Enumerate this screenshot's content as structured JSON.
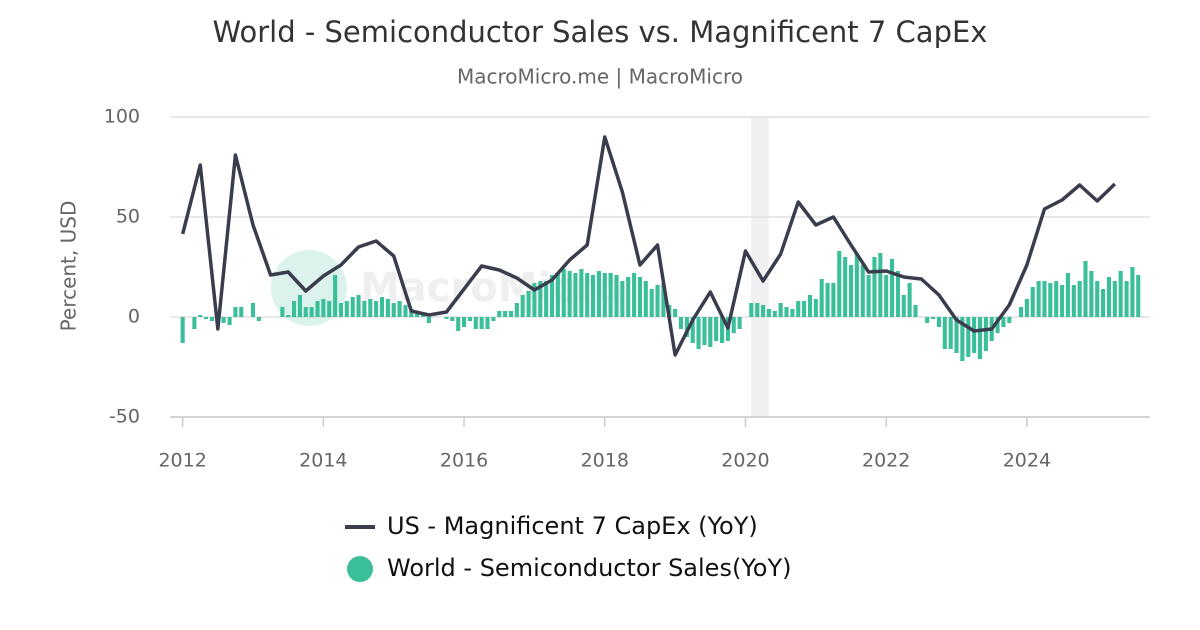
{
  "chart_data": {
    "type": "combo",
    "title": "World - Semiconductor Sales vs. Magnificent 7 CapEx",
    "subtitle": "MacroMicro.me | MacroMicro",
    "watermark": "MacroMicro",
    "y_label": "Percent, USD",
    "xlim": [
      2011.82,
      2025.75
    ],
    "xticks": [
      2012,
      2014,
      2016,
      2018,
      2020,
      2022,
      2024
    ],
    "ylim": [
      -50,
      100
    ],
    "yticks": [
      -50,
      0,
      50,
      100
    ],
    "grid": true,
    "shaded_band": [
      2020.08,
      2020.33
    ],
    "legend": "bottom",
    "series": [
      {
        "name": "US - Magnificent 7 CapEx (YoY)",
        "type": "line",
        "color": "#3a3d4d",
        "x": [
          2012,
          2012.25,
          2012.5,
          2012.75,
          2013,
          2013.25,
          2013.5,
          2013.75,
          2014,
          2014.25,
          2014.5,
          2014.75,
          2015,
          2015.25,
          2015.5,
          2015.75,
          2016,
          2016.25,
          2016.5,
          2016.75,
          2017,
          2017.25,
          2017.5,
          2017.75,
          2018,
          2018.25,
          2018.5,
          2018.75,
          2019,
          2019.25,
          2019.5,
          2019.75,
          2020,
          2020.25,
          2020.5,
          2020.75,
          2021,
          2021.25,
          2021.5,
          2021.75,
          2022,
          2022.25,
          2022.5,
          2022.75,
          2023,
          2023.25,
          2023.5,
          2023.75,
          2024,
          2024.25,
          2024.5,
          2024.75,
          2025,
          2025.25
        ],
        "values": [
          41.5,
          76,
          -6,
          81,
          46,
          21,
          22.5,
          13,
          20.5,
          26,
          35,
          38,
          30.5,
          3,
          1,
          2.5,
          14,
          25.5,
          23.5,
          19.5,
          13.5,
          18.5,
          28.5,
          36,
          90,
          62.5,
          26,
          36,
          -19,
          -1.5,
          12.5,
          -5.5,
          33,
          18,
          31.5,
          57.5,
          46,
          50,
          36,
          22.5,
          23,
          20,
          19,
          11,
          -1.5,
          -7,
          -6,
          6,
          26,
          54,
          58.5,
          66,
          58,
          66.5
        ]
      },
      {
        "name": "World - Semiconductor Sales(YoY)",
        "type": "bar",
        "color": "#3bbf9a",
        "x": [
          2012,
          2012.083,
          2012.167,
          2012.25,
          2012.333,
          2012.417,
          2012.5,
          2012.583,
          2012.667,
          2012.75,
          2012.833,
          2012.917,
          2013,
          2013.083,
          2013.167,
          2013.25,
          2013.333,
          2013.417,
          2013.5,
          2013.583,
          2013.667,
          2013.75,
          2013.833,
          2013.917,
          2014,
          2014.083,
          2014.167,
          2014.25,
          2014.333,
          2014.417,
          2014.5,
          2014.583,
          2014.667,
          2014.75,
          2014.833,
          2014.917,
          2015,
          2015.083,
          2015.167,
          2015.25,
          2015.333,
          2015.417,
          2015.5,
          2015.583,
          2015.667,
          2015.75,
          2015.833,
          2015.917,
          2016,
          2016.083,
          2016.167,
          2016.25,
          2016.333,
          2016.417,
          2016.5,
          2016.583,
          2016.667,
          2016.75,
          2016.833,
          2016.917,
          2017,
          2017.083,
          2017.167,
          2017.25,
          2017.333,
          2017.417,
          2017.5,
          2017.583,
          2017.667,
          2017.75,
          2017.833,
          2017.917,
          2018,
          2018.083,
          2018.167,
          2018.25,
          2018.333,
          2018.417,
          2018.5,
          2018.583,
          2018.667,
          2018.75,
          2018.833,
          2018.917,
          2019,
          2019.083,
          2019.167,
          2019.25,
          2019.333,
          2019.417,
          2019.5,
          2019.583,
          2019.667,
          2019.75,
          2019.833,
          2019.917,
          2020,
          2020.083,
          2020.167,
          2020.25,
          2020.333,
          2020.417,
          2020.5,
          2020.583,
          2020.667,
          2020.75,
          2020.833,
          2020.917,
          2021,
          2021.083,
          2021.167,
          2021.25,
          2021.333,
          2021.417,
          2021.5,
          2021.583,
          2021.667,
          2021.75,
          2021.833,
          2021.917,
          2022,
          2022.083,
          2022.167,
          2022.25,
          2022.333,
          2022.417,
          2022.5,
          2022.583,
          2022.667,
          2022.75,
          2022.833,
          2022.917,
          2023,
          2023.083,
          2023.167,
          2023.25,
          2023.333,
          2023.417,
          2023.5,
          2023.583,
          2023.667,
          2023.75,
          2023.833,
          2023.917,
          2024,
          2024.083,
          2024.167,
          2024.25,
          2024.333,
          2024.417,
          2024.5,
          2024.583,
          2024.667,
          2024.75,
          2024.833,
          2024.917,
          2025,
          2025.083,
          2025.167,
          2025.25,
          2025.333,
          2025.417,
          2025.5,
          2025.583
        ],
        "values": [
          -13,
          0,
          -6,
          1,
          -1,
          -2,
          -4,
          -3,
          -4,
          5,
          5,
          0,
          7,
          -2,
          0,
          0,
          0,
          5,
          1,
          8,
          11,
          5,
          5,
          8,
          9,
          8,
          21,
          7,
          8,
          10,
          11,
          8,
          9,
          8,
          10,
          9,
          7,
          8,
          6,
          4,
          2,
          1,
          -3,
          0,
          0,
          -1,
          -2,
          -7,
          -5,
          -2,
          -6,
          -6,
          -6,
          -2,
          3,
          3,
          3,
          7,
          11,
          13,
          17,
          18,
          18,
          21,
          22,
          24,
          23,
          22,
          24,
          22,
          21,
          23,
          22,
          22,
          21,
          18,
          20,
          22,
          20,
          18,
          14,
          16,
          17,
          6,
          4,
          -6,
          -10,
          -13,
          -16,
          -14,
          -15,
          -12,
          -13,
          -12,
          -8,
          -6,
          0,
          7,
          7,
          6,
          4,
          3,
          7,
          5,
          4,
          8,
          8,
          11,
          9,
          19,
          17,
          17,
          33,
          30,
          26,
          32,
          26,
          21,
          30,
          32,
          21,
          29,
          23,
          11,
          17,
          6,
          0,
          -3,
          -1,
          -5,
          -16,
          -16,
          -18,
          -22,
          -20,
          -18,
          -21,
          -17,
          -12,
          -8,
          -5,
          -3,
          0,
          5,
          9,
          15,
          18,
          18,
          17,
          18,
          16,
          22,
          16,
          18,
          28,
          23,
          18,
          14,
          20,
          18,
          23,
          18,
          25,
          21
        ]
      }
    ]
  }
}
